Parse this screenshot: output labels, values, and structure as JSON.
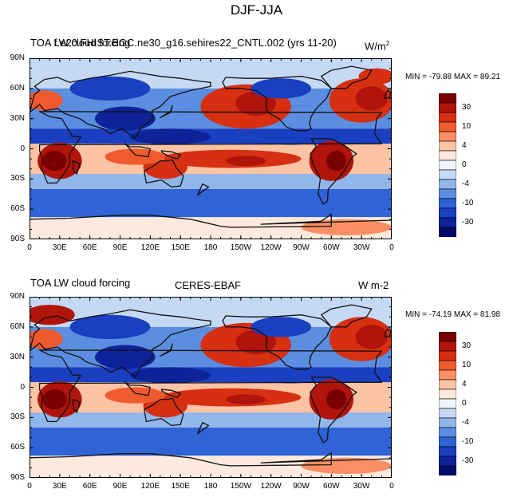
{
  "main_title": "DJF-JJA",
  "chart_data": [
    {
      "type": "heatmap",
      "title_left": "TOA LW cloud forcing",
      "title_center": "f.e20.FHIST.BGC.ne30_g16.sehires22_CNTL.002 (yrs 11-20)",
      "units": "W/m",
      "units_sup": "2",
      "stats": "MIN = -79.88 MAX =  89.21",
      "min": -79.88,
      "max": 89.21,
      "y_ticks": [
        "90N",
        "60N",
        "30N",
        "0",
        "30S",
        "60S",
        "90S"
      ],
      "x_ticks": [
        "0",
        "30E",
        "60E",
        "90E",
        "120E",
        "150E",
        "180",
        "150W",
        "120W",
        "90W",
        "60W",
        "30W",
        "0"
      ]
    },
    {
      "type": "heatmap",
      "title_left": "TOA LW cloud forcing",
      "title_center": "CERES-EBAF",
      "units": "W m-2",
      "units_sup": "",
      "stats": "MIN = -74.19 MAX =  81.98",
      "min": -74.19,
      "max": 81.98,
      "y_ticks": [
        "90N",
        "60N",
        "30N",
        "0",
        "30S",
        "60S",
        "90S"
      ],
      "x_ticks": [
        "0",
        "30E",
        "60E",
        "90E",
        "120E",
        "150E",
        "180",
        "150W",
        "120W",
        "90W",
        "60W",
        "30W",
        "0"
      ]
    }
  ],
  "colorbar": {
    "labels": [
      "30",
      "10",
      "4",
      "0",
      "-4",
      "-10",
      "-30"
    ],
    "colors": [
      "#7a0000",
      "#b0140a",
      "#d62f12",
      "#ef5a2e",
      "#f98f63",
      "#fcc3a4",
      "#fde9dd",
      "#f2f4fb",
      "#c5d9f4",
      "#90b6ea",
      "#5b8ee0",
      "#2f63d6",
      "#1a3fc0",
      "#0e2399",
      "#000b6a"
    ]
  },
  "colors": {
    "ocean_blue": "#2f5fd6",
    "warm_red": "#d8351a"
  }
}
